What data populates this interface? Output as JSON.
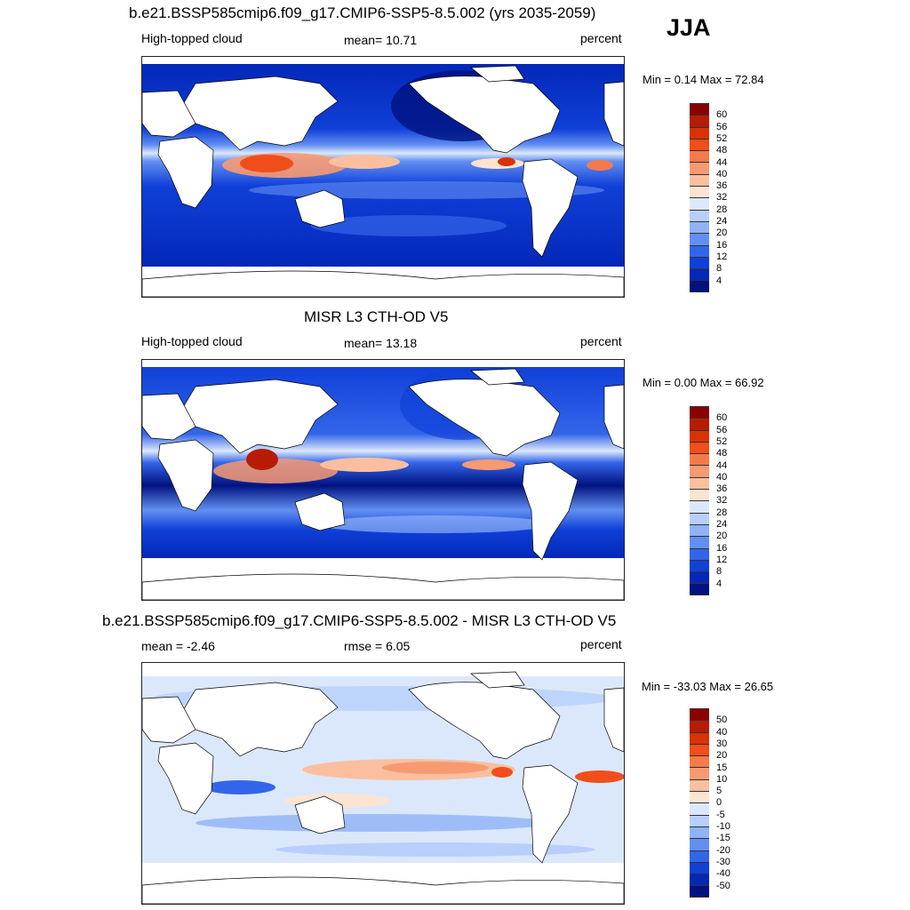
{
  "season": "JJA",
  "panels": [
    {
      "title": "b.e21.BSSP585cmip6.f09_g17.CMIP6-SSP5-8.5.002 (yrs 2035-2059)",
      "left_label": "High-topped cloud",
      "center_label": "mean=  10.71",
      "right_label": "percent",
      "minmax": "Min =   0.14 Max =  72.84"
    },
    {
      "title": "MISR L3 CTH-OD V5",
      "left_label": "High-topped cloud",
      "center_label": "mean=  13.18",
      "right_label": "percent",
      "minmax": "Min =   0.00 Max =  66.92"
    },
    {
      "title": "b.e21.BSSP585cmip6.f09_g17.CMIP6-SSP5-8.5.002 - MISR L3 CTH-OD V5",
      "left_label": "mean =  -2.46",
      "center_label": "rmse =   6.05",
      "right_label": "percent",
      "minmax": "Min = -33.03 Max =  26.65"
    }
  ],
  "colorbars": {
    "abs": {
      "labels": [
        "60",
        "56",
        "52",
        "48",
        "44",
        "40",
        "36",
        "32",
        "28",
        "24",
        "20",
        "16",
        "12",
        "8",
        "4"
      ],
      "colors": [
        "#8b0000",
        "#b71c02",
        "#d93205",
        "#f04e1a",
        "#f47a4a",
        "#f79a72",
        "#fbbf9f",
        "#fde4d2",
        "#dbe8fb",
        "#b7cffb",
        "#8fb2f8",
        "#628ff2",
        "#3365ea",
        "#1040d8",
        "#0327b8",
        "#00127f"
      ]
    },
    "diff": {
      "labels": [
        "50",
        "40",
        "30",
        "20",
        "15",
        "10",
        "5",
        "0",
        "-5",
        "-10",
        "-15",
        "-20",
        "-30",
        "-40",
        "-50"
      ],
      "colors": [
        "#8b0000",
        "#b71c02",
        "#d93205",
        "#f04e1a",
        "#f47a4a",
        "#f79a72",
        "#fbbf9f",
        "#fde4d2",
        "#dbe8fb",
        "#b7cffb",
        "#8fb2f8",
        "#628ff2",
        "#3365ea",
        "#1040d8",
        "#0327b8",
        "#00127f"
      ]
    }
  }
}
